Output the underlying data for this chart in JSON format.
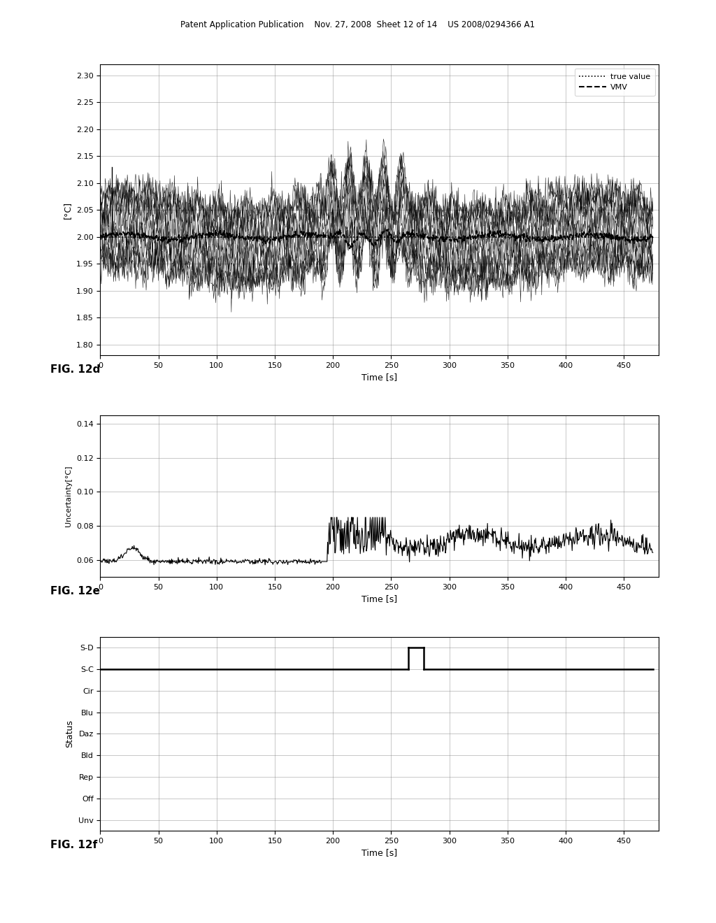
{
  "fig12d": {
    "xlabel": "Time [s]",
    "ylabel": "[°C]",
    "fig_label": "FIG. 12d",
    "xlim": [
      0,
      480
    ],
    "ylim": [
      1.78,
      2.32
    ],
    "yticks": [
      1.8,
      1.85,
      1.9,
      1.95,
      2.0,
      2.05,
      2.1,
      2.15,
      2.2,
      2.25,
      2.3
    ],
    "xticks": [
      0,
      50,
      100,
      150,
      200,
      250,
      300,
      350,
      400,
      450
    ],
    "true_value": 2.0,
    "legend_true_value": "true value",
    "legend_vmv": "VMV"
  },
  "fig12e": {
    "xlabel": "Time [s]",
    "ylabel": "Uncertainty[°C]",
    "fig_label": "FIG. 12e",
    "xlim": [
      0,
      480
    ],
    "ylim": [
      0.05,
      0.145
    ],
    "yticks": [
      0.06,
      0.08,
      0.1,
      0.12,
      0.14
    ],
    "xticks": [
      0,
      50,
      100,
      150,
      200,
      250,
      300,
      350,
      400,
      450
    ]
  },
  "fig12f": {
    "xlabel": "Time [s]",
    "ylabel": "Status",
    "fig_label": "FIG. 12f",
    "xlim": [
      0,
      480
    ],
    "xticks": [
      0,
      50,
      100,
      150,
      200,
      250,
      300,
      350,
      400,
      450
    ],
    "status_labels": [
      "S-D",
      "S-C",
      "Cir",
      "Blu",
      "Daz",
      "Bld",
      "Rep",
      "Off",
      "Unv"
    ],
    "switch_x": 265,
    "switch_end": 278
  },
  "header_text": "Patent Application Publication    Nov. 27, 2008  Sheet 12 of 14    US 2008/0294366 A1"
}
